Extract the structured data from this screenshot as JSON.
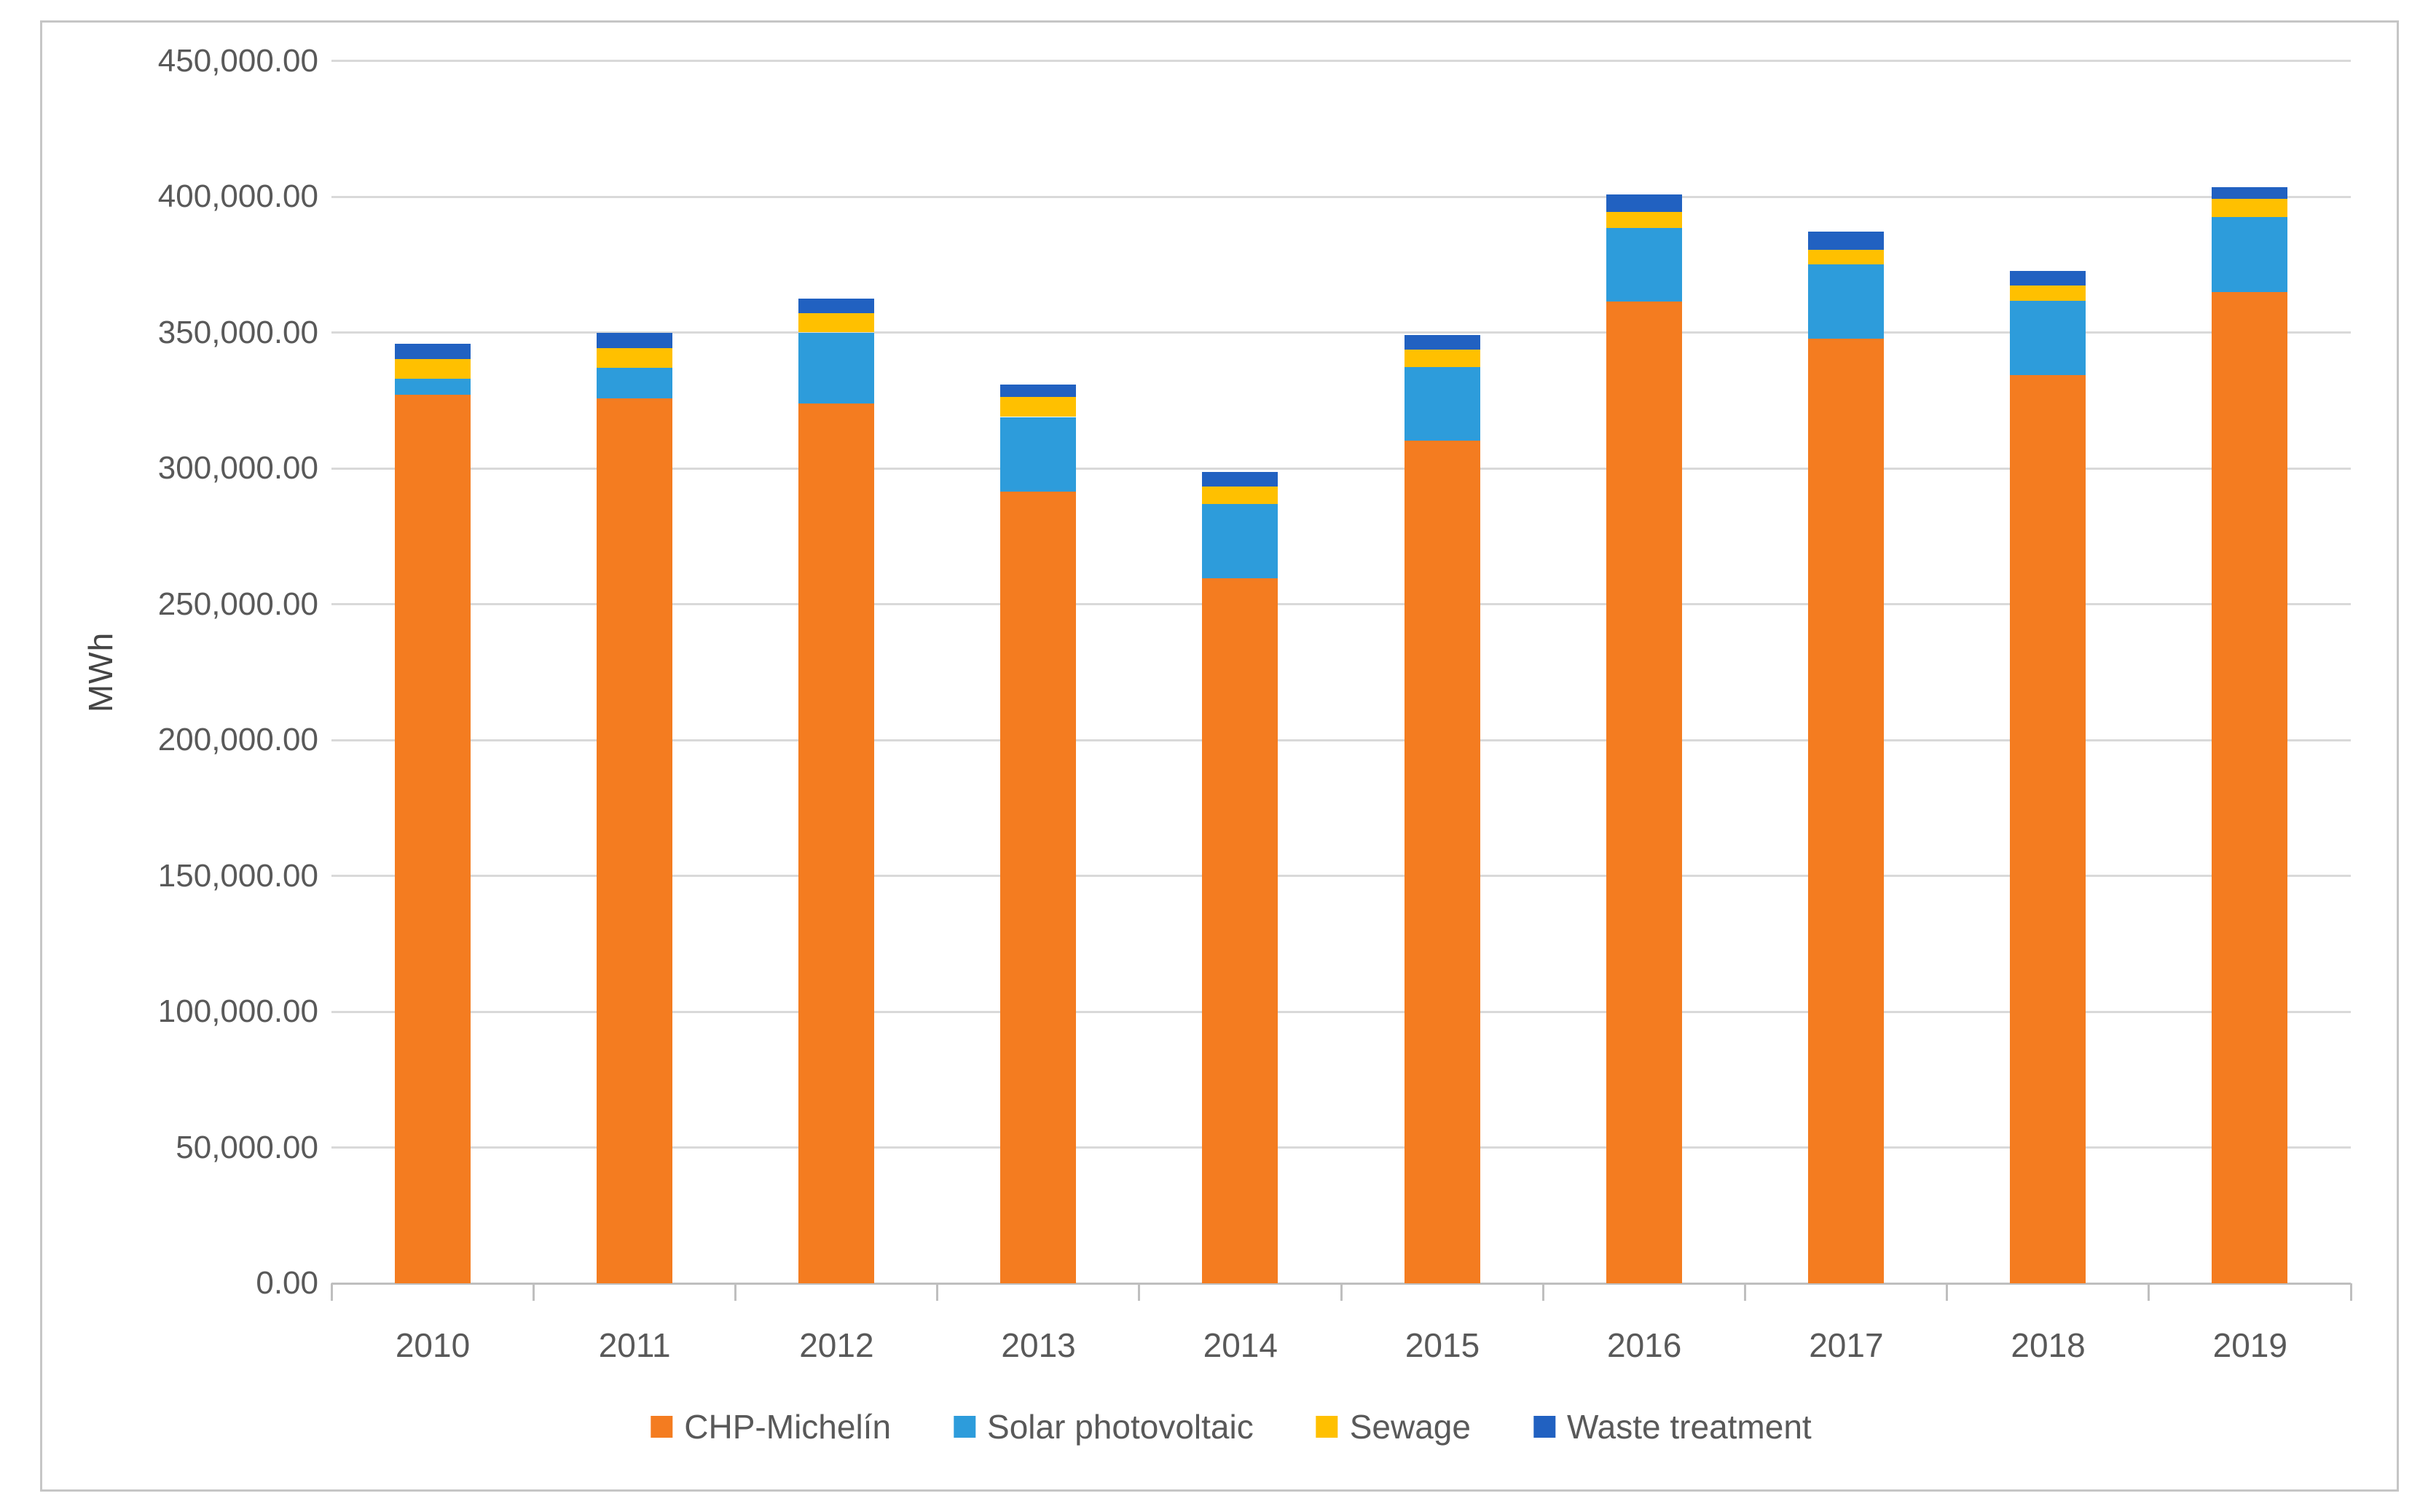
{
  "chart_data": {
    "type": "bar",
    "stacked": true,
    "title": "",
    "xlabel": "",
    "ylabel": "MWh",
    "categories": [
      "2010",
      "2011",
      "2012",
      "2013",
      "2014",
      "2015",
      "2016",
      "2017",
      "2018",
      "2019"
    ],
    "series": [
      {
        "name": "CHP-Michelín",
        "color": "#f47c20",
        "values": [
          327000,
          325800,
          323800,
          291400,
          259500,
          310200,
          361300,
          347700,
          334300,
          365000
        ]
      },
      {
        "name": "Solar photovoltaic",
        "color": "#2d9cdb",
        "values": [
          6100,
          11200,
          26200,
          27500,
          27300,
          27000,
          27300,
          27300,
          27400,
          27400
        ]
      },
      {
        "name": "Sewage",
        "color": "#ffc000",
        "values": [
          7000,
          7200,
          7100,
          7400,
          6400,
          6500,
          5700,
          5500,
          5700,
          6700
        ]
      },
      {
        "name": "Waste treatment",
        "color": "#2161c1",
        "values": [
          5800,
          5800,
          5400,
          4500,
          5400,
          5400,
          6400,
          6600,
          5300,
          4500
        ]
      }
    ],
    "totals": [
      345900,
      350000,
      362500,
      330800,
      298600,
      349100,
      400700,
      387100,
      372700,
      403600
    ],
    "ylim": [
      0,
      450000
    ],
    "ytick_step": 50000,
    "ytick_labels": [
      "0.00",
      "50,000.00",
      "100,000.00",
      "150,000.00",
      "200,000.00",
      "250,000.00",
      "300,000.00",
      "350,000.00",
      "400,000.00",
      "450,000.00"
    ],
    "grid": true,
    "legend_position": "bottom"
  }
}
